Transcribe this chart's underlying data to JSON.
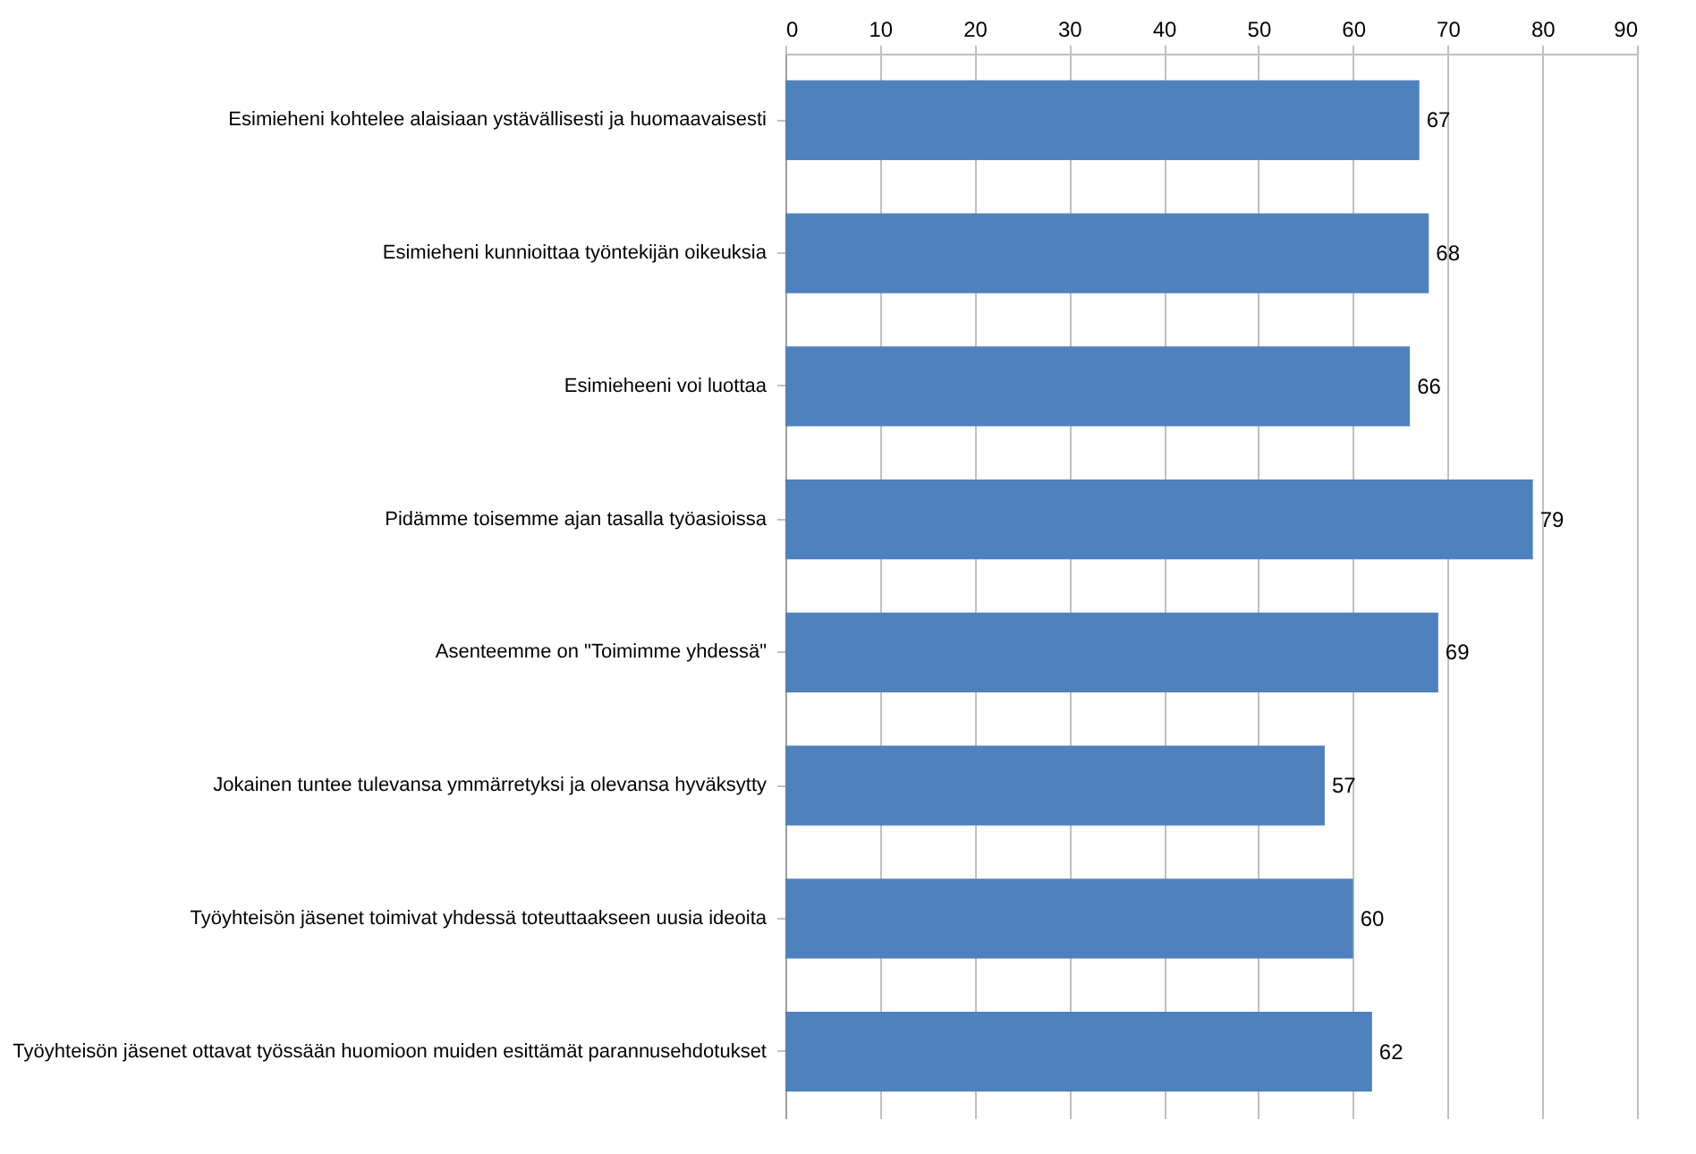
{
  "chart_data": {
    "type": "bar",
    "orientation": "horizontal",
    "categories": [
      "Esimieheni kohtelee alaisiaan ystävällisesti ja huomaavaisesti",
      "Esimieheni kunnioittaa työntekijän oikeuksia",
      "Esimieheeni voi luottaa",
      "Pidämme toisemme ajan tasalla työasioissa",
      "Asenteemme on \"Toimimme yhdessä\"",
      "Jokainen tuntee tulevansa ymmärretyksi ja olevansa hyväksytty",
      "Työyhteisön jäsenet toimivat yhdessä toteuttaakseen uusia ideoita",
      "Työyhteisön jäsenet ottavat työssään huomioon muiden esittämät parannusehdotukset"
    ],
    "values": [
      67,
      68,
      66,
      79,
      69,
      57,
      60,
      62
    ],
    "color": "#4f81bd",
    "xlim": [
      0,
      90
    ],
    "xticks": [
      0,
      10,
      20,
      30,
      40,
      50,
      60,
      70,
      80,
      90
    ],
    "grid": "x",
    "data_labels": true
  }
}
